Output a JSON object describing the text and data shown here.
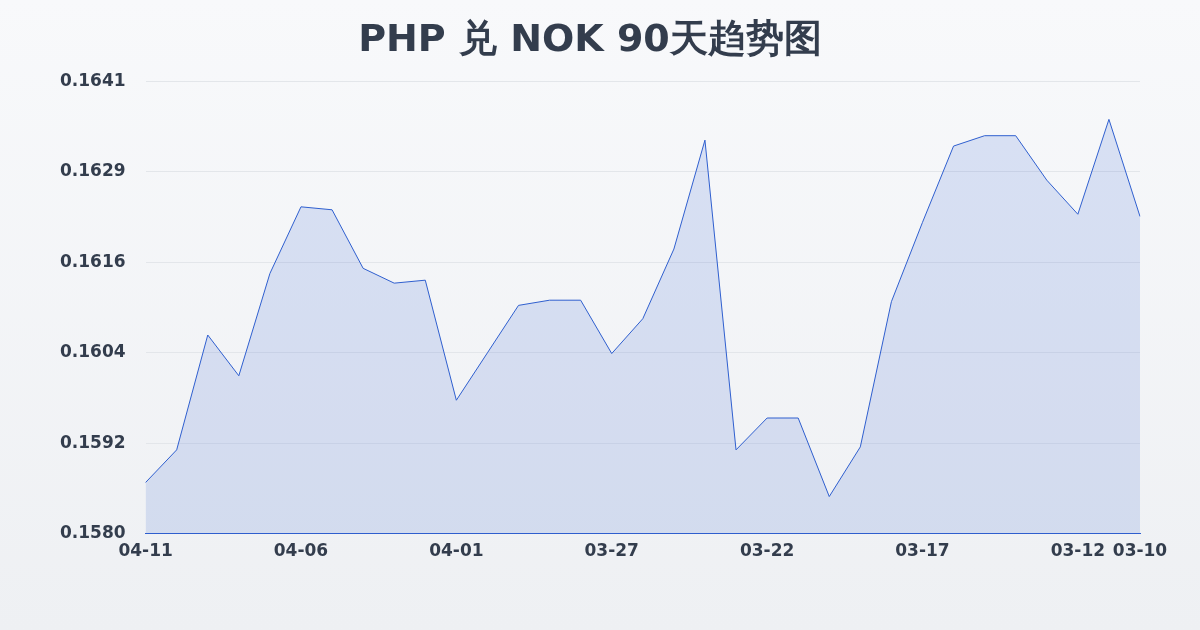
{
  "chart_data": {
    "type": "area",
    "title": "PHP 兑 NOK 90天趋势图",
    "categories": [
      "04-11",
      null,
      null,
      null,
      null,
      "04-06",
      null,
      null,
      null,
      null,
      "04-01",
      null,
      null,
      null,
      null,
      "03-27",
      null,
      null,
      null,
      null,
      "03-22",
      null,
      null,
      null,
      null,
      "03-17",
      null,
      null,
      null,
      null,
      "03-12",
      null,
      "03-10"
    ],
    "series": [
      {
        "color": "#2f5fcf",
        "values": [
          0.15867,
          0.15911,
          0.16066,
          0.16011,
          0.16149,
          0.16239,
          0.16235,
          0.16156,
          0.16136,
          0.1614,
          0.15978,
          0.16042,
          0.16106,
          0.16113,
          0.16113,
          0.16041,
          0.16088,
          0.16182,
          0.16329,
          0.15911,
          0.15954,
          0.15954,
          0.15848,
          0.15915,
          0.16111,
          0.16218,
          0.16321,
          0.16335,
          0.16335,
          0.16275,
          0.16229,
          0.16357,
          0.16226
        ]
      }
    ],
    "ylim": [
      0.15798,
      0.16408
    ],
    "yticks": [
      {
        "value": 0.15798,
        "label": "0.1580"
      },
      {
        "value": 0.1592,
        "label": "0.1592"
      },
      {
        "value": 0.16042,
        "label": "0.1604"
      },
      {
        "value": 0.16164,
        "label": "0.1616"
      },
      {
        "value": 0.16286,
        "label": "0.1629"
      },
      {
        "value": 0.16408,
        "label": "0.1641"
      }
    ],
    "grid": "y",
    "legend": false,
    "marker": "none"
  }
}
